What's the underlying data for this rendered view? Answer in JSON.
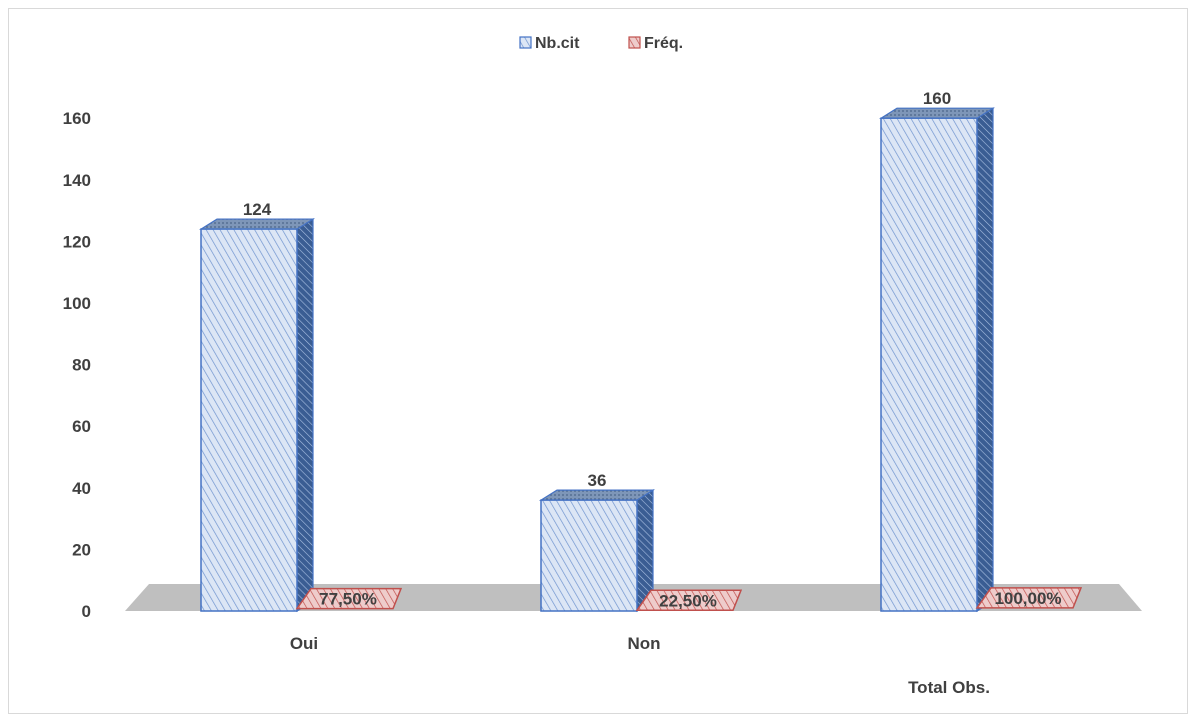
{
  "chart_data": {
    "type": "bar",
    "style": "3d-clustered-column",
    "categories": [
      "Oui",
      "Non",
      "Total Obs."
    ],
    "series": [
      {
        "name": "Nb.cit",
        "values": [
          124,
          36,
          160
        ],
        "labels": [
          "124",
          "36",
          "160"
        ],
        "color": "#4472c4",
        "fill": "#dce6f5"
      },
      {
        "name": "Fréq.",
        "values": [
          77.5,
          22.5,
          100
        ],
        "labels": [
          "77,50%",
          "22,50%",
          "100,00%"
        ],
        "color": "#c0504d",
        "fill": "#e8b4b4"
      }
    ],
    "y_ticks": [
      "0",
      "20",
      "40",
      "60",
      "80",
      "100",
      "120",
      "140",
      "160"
    ],
    "ylim": [
      0,
      160
    ],
    "legend_position": "top",
    "grid": false,
    "floor_color": "#bfbfbf"
  }
}
